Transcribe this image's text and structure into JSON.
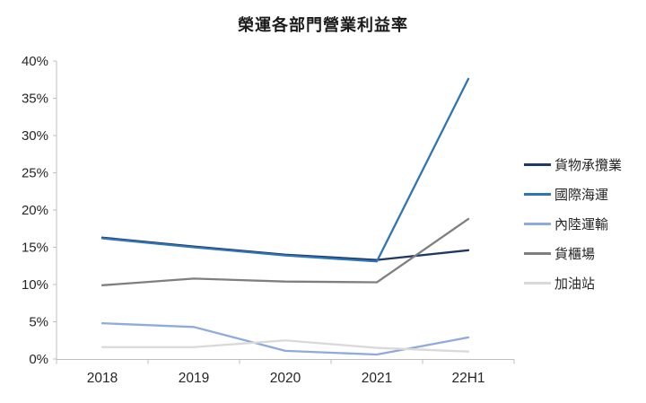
{
  "title": "榮運各部門營業利益率",
  "chart_data": {
    "type": "line",
    "categories": [
      "2018",
      "2019",
      "2020",
      "2021",
      "22H1"
    ],
    "series": [
      {
        "name": "貨物承攬業",
        "color": "#1F3864",
        "values": [
          16.3,
          15.1,
          14.0,
          13.3,
          14.6
        ]
      },
      {
        "name": "國際海運",
        "color": "#2E75B6",
        "values": [
          16.2,
          15.0,
          13.9,
          13.1,
          37.6
        ]
      },
      {
        "name": "內陸運輸",
        "color": "#8FAADC",
        "values": [
          4.8,
          4.3,
          1.1,
          0.6,
          2.9
        ]
      },
      {
        "name": "貨櫃場",
        "color": "#7F7F7F",
        "values": [
          9.9,
          10.8,
          10.4,
          10.3,
          18.8
        ]
      },
      {
        "name": "加油站",
        "color": "#D9D9D9",
        "values": [
          1.6,
          1.6,
          2.5,
          1.5,
          1.0
        ]
      }
    ],
    "title": "榮運各部門營業利益率",
    "xlabel": "",
    "ylabel": "",
    "ylim": [
      0,
      40
    ],
    "ytick_step": 5,
    "ytick_labels": [
      "0%",
      "5%",
      "10%",
      "15%",
      "20%",
      "25%",
      "30%",
      "35%",
      "40%"
    ],
    "grid": false,
    "legend_position": "right",
    "axis_color": "#BFBFBF",
    "text_color": "#262626"
  }
}
